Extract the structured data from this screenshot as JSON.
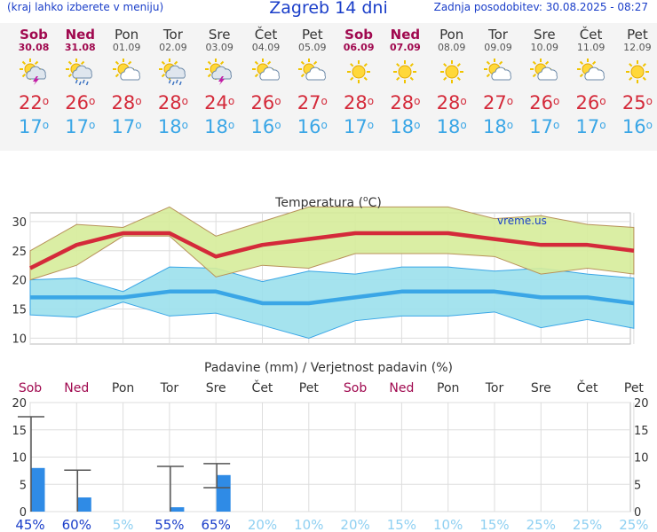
{
  "header": {
    "left_note": "(kraj lahko izberete v meniju)",
    "title": "Zagreb 14 dni",
    "updated": "Zadnja posodobitev: 30.08.2025 - 08:27"
  },
  "days": [
    {
      "name": "Sob",
      "date": "30.08",
      "weekend": true,
      "icon": "sun-thunder-icon",
      "tmax": "22",
      "tmin": "17"
    },
    {
      "name": "Ned",
      "date": "31.08",
      "weekend": true,
      "icon": "sun-cloud-rain-icon",
      "tmax": "26",
      "tmin": "17"
    },
    {
      "name": "Pon",
      "date": "01.09",
      "weekend": false,
      "icon": "sun-cloud-icon",
      "tmax": "28",
      "tmin": "17"
    },
    {
      "name": "Tor",
      "date": "02.09",
      "weekend": false,
      "icon": "sun-cloud-rain-icon",
      "tmax": "28",
      "tmin": "18"
    },
    {
      "name": "Sre",
      "date": "03.09",
      "weekend": false,
      "icon": "sun-thunder-icon",
      "tmax": "24",
      "tmin": "18"
    },
    {
      "name": "Čet",
      "date": "04.09",
      "weekend": false,
      "icon": "sun-cloud-icon",
      "tmax": "26",
      "tmin": "16"
    },
    {
      "name": "Pet",
      "date": "05.09",
      "weekend": false,
      "icon": "sun-cloud-icon",
      "tmax": "27",
      "tmin": "16"
    },
    {
      "name": "Sob",
      "date": "06.09",
      "weekend": true,
      "icon": "sun-icon",
      "tmax": "28",
      "tmin": "17"
    },
    {
      "name": "Ned",
      "date": "07.09",
      "weekend": true,
      "icon": "sun-icon",
      "tmax": "28",
      "tmin": "18"
    },
    {
      "name": "Pon",
      "date": "08.09",
      "weekend": false,
      "icon": "sun-icon",
      "tmax": "28",
      "tmin": "18"
    },
    {
      "name": "Tor",
      "date": "09.09",
      "weekend": false,
      "icon": "sun-cloud-icon",
      "tmax": "27",
      "tmin": "18"
    },
    {
      "name": "Sre",
      "date": "10.09",
      "weekend": false,
      "icon": "sun-cloud-icon",
      "tmax": "26",
      "tmin": "17"
    },
    {
      "name": "Čet",
      "date": "11.09",
      "weekend": false,
      "icon": "sun-cloud-icon",
      "tmax": "26",
      "tmin": "17"
    },
    {
      "name": "Pet",
      "date": "12.09",
      "weekend": false,
      "icon": "sun-icon",
      "tmax": "25",
      "tmin": "16"
    }
  ],
  "degree_symbol": "o",
  "colors": {
    "title": "#1a3ec9",
    "weekend": "#a0094f",
    "tmax": "#d42a3a",
    "tmin": "#3aa6e6",
    "tmax_band": "#d6ec9a",
    "tmin_band": "#9be0ec",
    "precip_bar": "#2f8be6"
  },
  "chart_data": [
    {
      "type": "line",
      "title": "Temperatura (°C)",
      "title_text": "Temperatura (",
      "title_unit": "C)",
      "watermark": "vreme.us",
      "ylim": [
        9,
        31.5
      ],
      "yticks": [
        10,
        15,
        20,
        25,
        30
      ],
      "grid": true,
      "series": [
        {
          "role": "tmax",
          "values": [
            22,
            26,
            28,
            28,
            24,
            26,
            27,
            28,
            28,
            28,
            27,
            26,
            26,
            25
          ]
        },
        {
          "role": "tmax_upper",
          "values": [
            25,
            29.5,
            29,
            32.5,
            27.5,
            30,
            32.5,
            32.5,
            32.5,
            32.5,
            30.5,
            31,
            29.5,
            29
          ]
        },
        {
          "role": "tmax_lower",
          "values": [
            20,
            22.5,
            27.5,
            27.5,
            20.5,
            22.5,
            22,
            24.5,
            24.5,
            24.5,
            24,
            21,
            22,
            21
          ]
        },
        {
          "role": "tmin",
          "values": [
            17,
            17,
            17,
            18,
            18,
            16,
            16,
            17,
            18,
            18,
            18,
            17,
            17,
            16
          ]
        },
        {
          "role": "tmin_upper",
          "values": [
            20,
            20.3,
            18,
            22.2,
            22,
            19.7,
            21.5,
            21,
            22.2,
            22.2,
            21.5,
            22,
            21,
            20.3
          ]
        },
        {
          "role": "tmin_lower",
          "values": [
            14,
            13.6,
            16.2,
            13.8,
            14.3,
            12.2,
            10,
            13,
            13.8,
            13.8,
            14.5,
            11.8,
            13.2,
            11.7
          ]
        }
      ]
    },
    {
      "type": "bar",
      "title": "Padavine (mm) / Verjetnost padavin (%)",
      "categories": [
        "Sob",
        "Ned",
        "Pon",
        "Tor",
        "Sre",
        "Čet",
        "Pet",
        "Sob",
        "Ned",
        "Pon",
        "Tor",
        "Sre",
        "Čet",
        "Pet"
      ],
      "weekend": [
        true,
        true,
        false,
        false,
        false,
        false,
        false,
        true,
        true,
        false,
        false,
        false,
        false,
        false
      ],
      "ylim": [
        0,
        20
      ],
      "yticks": [
        0,
        5,
        10,
        15,
        20
      ],
      "values": [
        8,
        2.6,
        0,
        0.8,
        6.7,
        0,
        0,
        0,
        0,
        0,
        0,
        0,
        0,
        0
      ],
      "error_high": [
        17.4,
        7.6,
        null,
        8.3,
        8.8,
        null,
        null,
        null,
        null,
        null,
        null,
        null,
        null,
        null
      ],
      "error_low": [
        null,
        0,
        null,
        0,
        4.4,
        null,
        null,
        null,
        null,
        null,
        null,
        null,
        null,
        null
      ],
      "probability": [
        "45%",
        "60%",
        "5%",
        "55%",
        "65%",
        "20%",
        "10%",
        "20%",
        "15%",
        "10%",
        "15%",
        "25%",
        "25%",
        "25%"
      ],
      "probability_strong": [
        true,
        true,
        false,
        true,
        true,
        false,
        false,
        false,
        false,
        false,
        false,
        false,
        false,
        false
      ]
    }
  ]
}
